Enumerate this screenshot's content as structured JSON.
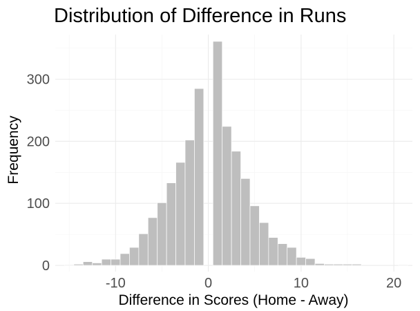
{
  "chart_data": {
    "type": "bar",
    "title": "Distribution of Difference in Runs",
    "xlabel": "Difference in Scores (Home - Away)",
    "ylabel": "Frequency",
    "xlim": [
      -16.5,
      22
    ],
    "ylim": [
      -10,
      372
    ],
    "x_ticks": [
      -10,
      0,
      10,
      20
    ],
    "x_minor_ticks": [
      -15,
      -5,
      5,
      15
    ],
    "y_ticks": [
      0,
      100,
      200,
      300
    ],
    "y_minor_ticks": [
      50,
      150,
      250,
      350
    ],
    "bin_width": 1,
    "bar_color": "#bebebe",
    "x_tick_labels": [
      "-10",
      "0",
      "10",
      "20"
    ],
    "y_tick_labels": [
      "0",
      "100",
      "200",
      "300"
    ],
    "bins": [
      {
        "x": -15,
        "count": 1
      },
      {
        "x": -14,
        "count": 2
      },
      {
        "x": -13,
        "count": 6
      },
      {
        "x": -12,
        "count": 4
      },
      {
        "x": -11,
        "count": 10
      },
      {
        "x": -10,
        "count": 10
      },
      {
        "x": -9,
        "count": 19
      },
      {
        "x": -8,
        "count": 29
      },
      {
        "x": -7,
        "count": 51
      },
      {
        "x": -6,
        "count": 77
      },
      {
        "x": -5,
        "count": 101
      },
      {
        "x": -4,
        "count": 133
      },
      {
        "x": -3,
        "count": 166
      },
      {
        "x": -2,
        "count": 202
      },
      {
        "x": -1,
        "count": 285
      },
      {
        "x": 0,
        "count": 0
      },
      {
        "x": 1,
        "count": 361
      },
      {
        "x": 2,
        "count": 224
      },
      {
        "x": 3,
        "count": 184
      },
      {
        "x": 4,
        "count": 140
      },
      {
        "x": 5,
        "count": 96
      },
      {
        "x": 6,
        "count": 69
      },
      {
        "x": 7,
        "count": 45
      },
      {
        "x": 8,
        "count": 35
      },
      {
        "x": 9,
        "count": 29
      },
      {
        "x": 10,
        "count": 13
      },
      {
        "x": 11,
        "count": 11
      },
      {
        "x": 12,
        "count": 3
      },
      {
        "x": 13,
        "count": 2
      },
      {
        "x": 14,
        "count": 2
      },
      {
        "x": 15,
        "count": 2
      },
      {
        "x": 16,
        "count": 2
      },
      {
        "x": 17,
        "count": 0
      },
      {
        "x": 18,
        "count": 0
      },
      {
        "x": 19,
        "count": 0
      },
      {
        "x": 20,
        "count": 0
      },
      {
        "x": 21,
        "count": 1
      }
    ]
  }
}
